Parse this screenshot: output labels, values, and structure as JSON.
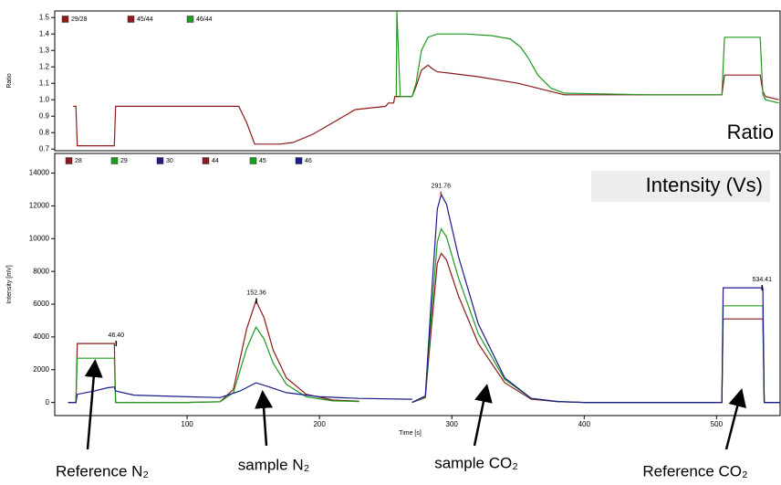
{
  "chart_data": [
    {
      "type": "line",
      "title": "Ratio",
      "ylabel": "Ratio",
      "xlim": [
        0,
        548
      ],
      "ylim": [
        0.69,
        1.54
      ],
      "yticks": [
        0.7,
        0.8,
        0.9,
        {
          "value": 1,
          "label": "1.0"
        },
        1.1,
        1.2,
        1.3,
        1.4,
        1.5
      ],
      "series": [
        {
          "name": "29/28",
          "color": "#8b1a1a",
          "x": [
            14,
            16,
            17,
            45,
            46,
            100,
            130,
            139,
            145,
            151,
            170,
            180,
            195,
            210,
            227,
            250,
            252,
            256,
            257,
            260
          ],
          "values": [
            0.96,
            0.96,
            0.72,
            0.72,
            0.96,
            0.96,
            0.96,
            0.96,
            0.86,
            0.73,
            0.73,
            0.74,
            0.79,
            0.86,
            0.94,
            0.96,
            0.98,
            0.98,
            1.02,
            1.02
          ]
        },
        {
          "name": "45/44",
          "color": "#8b1a1a",
          "x": [
            258,
            261,
            270,
            273,
            277,
            282,
            285,
            289,
            300,
            320,
            350,
            375,
            385,
            450,
            502,
            504,
            506,
            533,
            535,
            537,
            547
          ],
          "values": [
            1.02,
            1.02,
            1.02,
            1.08,
            1.18,
            1.21,
            1.19,
            1.17,
            1.16,
            1.14,
            1.1,
            1.05,
            1.03,
            1.03,
            1.03,
            1.03,
            1.15,
            1.15,
            1.05,
            1.02,
            1.0
          ]
        },
        {
          "name": "46/44",
          "color": "#1f9a1f",
          "x": [
            258,
            258.5,
            261,
            270,
            273,
            277,
            282,
            289,
            310,
            330,
            344,
            352,
            358,
            365,
            375,
            385,
            450,
            502,
            504,
            506,
            533,
            535,
            537,
            547
          ],
          "values": [
            1.02,
            1.54,
            1.02,
            1.02,
            1.1,
            1.3,
            1.38,
            1.4,
            1.4,
            1.39,
            1.37,
            1.32,
            1.25,
            1.15,
            1.07,
            1.04,
            1.03,
            1.03,
            1.03,
            1.38,
            1.38,
            1.03,
            1.0,
            0.98
          ]
        }
      ]
    },
    {
      "type": "line",
      "title": "Intensity (Vs)",
      "ylabel": "Intensity [mV]",
      "xlabel": "Time [s]",
      "xlim": [
        0,
        548
      ],
      "ylim": [
        -800,
        15200
      ],
      "xticks": [
        100,
        200,
        300,
        400,
        500
      ],
      "yticks": [
        0,
        2000,
        4000,
        6000,
        8000,
        10000,
        12000,
        14000
      ],
      "series": [
        {
          "name": "28",
          "color": "#8b1a1a",
          "x": [
            10,
            16,
            17,
            45,
            46,
            100,
            125,
            135,
            145,
            152,
            158,
            165,
            175,
            190,
            210,
            230
          ],
          "values": [
            0,
            0,
            3600,
            3600,
            0,
            0,
            50,
            800,
            4500,
            6200,
            5200,
            3200,
            1500,
            500,
            150,
            80
          ]
        },
        {
          "name": "29",
          "color": "#1f9a1f",
          "x": [
            10,
            16,
            17,
            45,
            46,
            100,
            125,
            135,
            145,
            152,
            158,
            165,
            175,
            190,
            210,
            230
          ],
          "values": [
            0,
            0,
            2700,
            2700,
            0,
            0,
            40,
            600,
            3300,
            4600,
            3900,
            2400,
            1100,
            350,
            100,
            60
          ]
        },
        {
          "name": "30",
          "color": "#1a1a8b",
          "x": [
            10,
            16,
            17,
            30,
            40,
            45,
            46,
            60,
            100,
            125,
            140,
            152,
            160,
            175,
            200,
            230,
            270
          ],
          "values": [
            0,
            0,
            500,
            700,
            900,
            950,
            700,
            450,
            350,
            300,
            700,
            1200,
            1000,
            600,
            350,
            250,
            200
          ]
        },
        {
          "name": "44",
          "color": "#8b1a1a",
          "x": [
            270,
            280,
            285,
            289,
            292,
            296,
            305,
            320,
            340,
            360,
            380,
            400,
            500,
            504,
            505,
            535,
            536,
            548
          ],
          "values": [
            0,
            300,
            5000,
            8500,
            9100,
            8700,
            6500,
            3600,
            1200,
            200,
            50,
            0,
            0,
            0,
            5100,
            5100,
            0,
            0
          ]
        },
        {
          "name": "45",
          "color": "#1f9a1f",
          "x": [
            270,
            280,
            285,
            289,
            292,
            296,
            305,
            320,
            340,
            360,
            380,
            400,
            500,
            504,
            505,
            535,
            536,
            548
          ],
          "values": [
            0,
            350,
            5800,
            9800,
            10600,
            10100,
            7600,
            4200,
            1400,
            250,
            60,
            0,
            0,
            0,
            5900,
            5900,
            0,
            0
          ]
        },
        {
          "name": "46",
          "color": "#1a1a8b",
          "x": [
            270,
            280,
            285,
            289,
            292,
            296,
            305,
            320,
            340,
            360,
            380,
            400,
            500,
            504,
            505,
            535,
            536,
            548
          ],
          "values": [
            0,
            400,
            7000,
            11800,
            12700,
            12100,
            8900,
            4800,
            1500,
            250,
            60,
            0,
            0,
            0,
            7000,
            7000,
            0,
            0
          ]
        }
      ],
      "annotations": [
        {
          "text": "46.40",
          "x": 46.4,
          "y": 3600,
          "color": "#000000"
        },
        {
          "text": "152.36",
          "x": 152.36,
          "y": 6200,
          "color": "#000000"
        },
        {
          "text": "291.76",
          "x": 291.76,
          "y": 12700,
          "color": "#e02020"
        },
        {
          "text": "534.41",
          "x": 534.41,
          "y": 7000,
          "color": "#000000"
        }
      ]
    }
  ],
  "callouts": [
    "Reference N₂",
    "sample N₂",
    "sample CO₂",
    "Reference CO₂"
  ]
}
